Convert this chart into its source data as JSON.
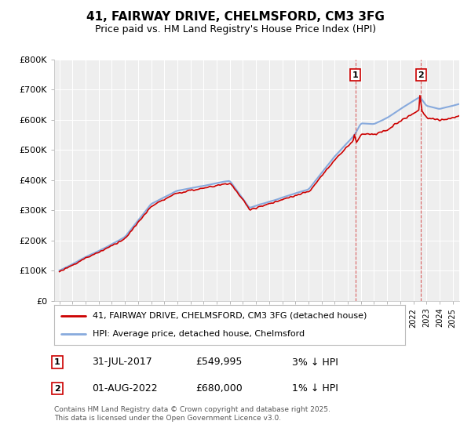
{
  "title": "41, FAIRWAY DRIVE, CHELMSFORD, CM3 3FG",
  "subtitle": "Price paid vs. HM Land Registry's House Price Index (HPI)",
  "ylim": [
    0,
    800000
  ],
  "yticks": [
    0,
    100000,
    200000,
    300000,
    400000,
    500000,
    600000,
    700000,
    800000
  ],
  "ytick_labels": [
    "£0",
    "£100K",
    "£200K",
    "£300K",
    "£400K",
    "£500K",
    "£600K",
    "£700K",
    "£800K"
  ],
  "line_red_color": "#cc0000",
  "line_blue_color": "#88aadd",
  "annotation1_year": 2017.58,
  "annotation1_value": 549995,
  "annotation2_year": 2022.58,
  "annotation2_value": 680000,
  "annotation1_date": "31-JUL-2017",
  "annotation1_price": "£549,995",
  "annotation1_hpi": "3% ↓ HPI",
  "annotation2_date": "01-AUG-2022",
  "annotation2_price": "£680,000",
  "annotation2_hpi": "1% ↓ HPI",
  "legend1_label": "41, FAIRWAY DRIVE, CHELMSFORD, CM3 3FG (detached house)",
  "legend2_label": "HPI: Average price, detached house, Chelmsford",
  "footnote": "Contains HM Land Registry data © Crown copyright and database right 2025.\nThis data is licensed under the Open Government Licence v3.0.",
  "background_color": "#ffffff",
  "plot_bg_color": "#eeeeee",
  "grid_color": "#ffffff",
  "xmin": 1994.6,
  "xmax": 2025.5
}
